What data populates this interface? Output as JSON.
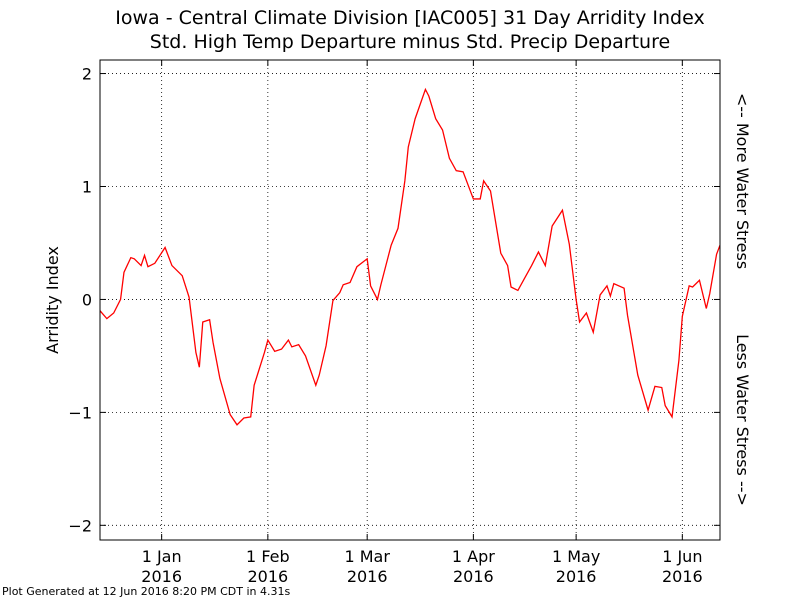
{
  "chart_data": {
    "type": "line",
    "title": "Iowa - Central Climate Division [IAC005] 31 Day Arridity Index",
    "subtitle": "Std. High Temp Departure minus Std. Precip Departure",
    "ylabel": "Arridity Index",
    "annotations": [
      "<-- More Water Stress",
      "Less Water Stress -->"
    ],
    "footer": "Plot Generated at 12 Jun 2016 8:20 PM CDT in 4.31s",
    "color": "#ff0000",
    "grid": true,
    "xlim": [
      "2015-12-14",
      "2016-06-12"
    ],
    "ylim": [
      -2.13,
      2.12
    ],
    "yticks": [
      {
        "value": -2,
        "label": "−2"
      },
      {
        "value": -1,
        "label": "−1"
      },
      0,
      1,
      2
    ],
    "xticks": [
      {
        "value": "2016-01-01",
        "label": [
          "1 Jan",
          "2016"
        ]
      },
      {
        "value": "2016-02-01",
        "label": [
          "1 Feb",
          "2016"
        ]
      },
      {
        "value": "2016-03-01",
        "label": [
          "1 Mar",
          "2016"
        ]
      },
      {
        "value": "2016-04-01",
        "label": [
          "1 Apr",
          "2016"
        ]
      },
      {
        "value": "2016-05-01",
        "label": [
          "1 May",
          "2016"
        ]
      },
      {
        "value": "2016-06-01",
        "label": [
          "1 Jun",
          "2016"
        ]
      }
    ],
    "x": [
      "2015-12-14",
      "2015-12-16",
      "2015-12-18",
      "2015-12-20",
      "2015-12-21",
      "2015-12-23",
      "2015-12-24",
      "2015-12-26",
      "2015-12-27",
      "2015-12-28",
      "2015-12-30",
      "2016-01-02",
      "2016-01-04",
      "2016-01-07",
      "2016-01-09",
      "2016-01-11",
      "2016-01-12",
      "2016-01-13",
      "2016-01-15",
      "2016-01-16",
      "2016-01-18",
      "2016-01-21",
      "2016-01-23",
      "2016-01-25",
      "2016-01-27",
      "2016-01-28",
      "2016-01-31",
      "2016-02-01",
      "2016-02-03",
      "2016-02-05",
      "2016-02-07",
      "2016-02-08",
      "2016-02-10",
      "2016-02-12",
      "2016-02-15",
      "2016-02-16",
      "2016-02-18",
      "2016-02-20",
      "2016-02-22",
      "2016-02-23",
      "2016-02-25",
      "2016-02-27",
      "2016-03-01",
      "2016-03-02",
      "2016-03-04",
      "2016-03-05",
      "2016-03-08",
      "2016-03-10",
      "2016-03-12",
      "2016-03-13",
      "2016-03-15",
      "2016-03-18",
      "2016-03-19",
      "2016-03-21",
      "2016-03-23",
      "2016-03-25",
      "2016-03-27",
      "2016-03-29",
      "2016-04-01",
      "2016-04-03",
      "2016-04-04",
      "2016-04-06",
      "2016-04-09",
      "2016-04-11",
      "2016-04-12",
      "2016-04-14",
      "2016-04-16",
      "2016-04-18",
      "2016-04-20",
      "2016-04-22",
      "2016-04-24",
      "2016-04-27",
      "2016-04-29",
      "2016-05-01",
      "2016-05-02",
      "2016-05-04",
      "2016-05-06",
      "2016-05-08",
      "2016-05-10",
      "2016-05-11",
      "2016-05-12",
      "2016-05-15",
      "2016-05-16",
      "2016-05-19",
      "2016-05-22",
      "2016-05-24",
      "2016-05-26",
      "2016-05-27",
      "2016-05-29",
      "2016-05-31",
      "2016-06-01",
      "2016-06-03",
      "2016-06-04",
      "2016-06-06",
      "2016-06-08",
      "2016-06-09",
      "2016-06-11",
      "2016-06-12"
    ],
    "values": [
      -0.1,
      -0.17,
      -0.12,
      0.0,
      0.24,
      0.37,
      0.36,
      0.3,
      0.39,
      0.29,
      0.32,
      0.46,
      0.3,
      0.21,
      0.02,
      -0.47,
      -0.6,
      -0.2,
      -0.18,
      -0.38,
      -0.7,
      -1.02,
      -1.11,
      -1.05,
      -1.04,
      -0.76,
      -0.47,
      -0.36,
      -0.46,
      -0.44,
      -0.36,
      -0.42,
      -0.4,
      -0.5,
      -0.76,
      -0.67,
      -0.41,
      -0.01,
      0.06,
      0.13,
      0.15,
      0.29,
      0.36,
      0.12,
      0.0,
      0.13,
      0.48,
      0.63,
      1.05,
      1.35,
      1.6,
      1.86,
      1.8,
      1.6,
      1.5,
      1.25,
      1.14,
      1.13,
      0.89,
      0.89,
      1.05,
      0.96,
      0.41,
      0.3,
      0.11,
      0.08,
      0.19,
      0.3,
      0.42,
      0.3,
      0.65,
      0.79,
      0.49,
      0.0,
      -0.2,
      -0.12,
      -0.29,
      0.04,
      0.12,
      0.03,
      0.14,
      0.1,
      -0.14,
      -0.67,
      -0.98,
      -0.77,
      -0.78,
      -0.94,
      -1.04,
      -0.54,
      -0.15,
      0.12,
      0.11,
      0.17,
      -0.08,
      0.05,
      0.4,
      0.48
    ]
  }
}
